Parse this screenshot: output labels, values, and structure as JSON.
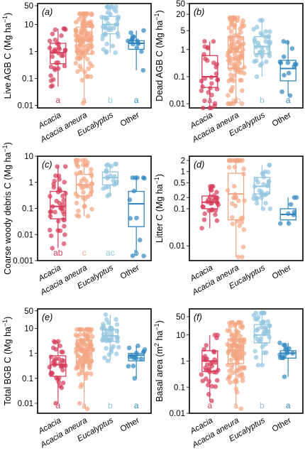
{
  "chart_data": {
    "type": "box-jitter",
    "categories": [
      "Acacia",
      "Acacia aneura",
      "Eucalyptus",
      "Other"
    ],
    "category_italic": [
      true,
      true,
      true,
      false
    ],
    "colors": [
      "#d63a58",
      "#f4a582",
      "#92c5de",
      "#2f86bf"
    ],
    "y_scale": "log",
    "panels": [
      {
        "label": "(a)",
        "ylabel": "Live AGB C (Mg ha",
        "ylabel_sup": "−1",
        "ylabel_end": ")",
        "ylim": [
          0.008,
          60
        ],
        "yticks": [
          0.01,
          0.1,
          1,
          10,
          50
        ],
        "ytick_labels": [
          "0.01",
          "0.1",
          "1",
          "10",
          "50"
        ],
        "letters": [
          "a",
          "a",
          "b",
          "a"
        ],
        "boxes": [
          {
            "q1": 0.35,
            "median": 0.9,
            "q3": 2.0,
            "wlo": 0.05,
            "whi": 7.0
          },
          {
            "q1": 0.8,
            "median": 2.8,
            "q3": 8.0,
            "wlo": 0.012,
            "whi": 25
          },
          {
            "q1": 4.5,
            "median": 10,
            "q3": 20,
            "wlo": 0.9,
            "whi": 45
          },
          {
            "q1": 1.2,
            "median": 2.0,
            "q3": 2.5,
            "wlo": 0.2,
            "whi": 6.0
          }
        ],
        "points_n": [
          35,
          110,
          40,
          15
        ]
      },
      {
        "label": "(b)",
        "ylabel": "Dead AGB C (Mg ha",
        "ylabel_sup": "−1",
        "ylabel_end": ")",
        "ylim": [
          0.007,
          50
        ],
        "yticks": [
          0.01,
          0.1,
          1,
          5,
          20,
          50
        ],
        "ytick_labels": [
          "0.01",
          "0.1",
          "1",
          "5",
          "20",
          "50"
        ],
        "letters": [
          "a",
          "ab",
          "b",
          "a"
        ],
        "boxes": [
          {
            "q1": 0.04,
            "median": 0.1,
            "q3": 0.6,
            "wlo": 0.007,
            "whi": 2.0
          },
          {
            "q1": 0.2,
            "median": 0.8,
            "q3": 3.0,
            "wlo": 0.01,
            "whi": 15
          },
          {
            "q1": 0.7,
            "median": 1.3,
            "q3": 3.0,
            "wlo": 0.1,
            "whi": 12
          },
          {
            "q1": 0.07,
            "median": 0.2,
            "q3": 0.4,
            "wlo": 0.02,
            "whi": 2.0
          }
        ],
        "points_n": [
          30,
          100,
          35,
          14
        ]
      },
      {
        "label": "(c)",
        "ylabel": "Coarse woody debris C (Mg ha",
        "ylabel_sup": "−1",
        "ylabel_end": ")",
        "ylim": [
          0.001,
          10
        ],
        "yticks": [
          0.001,
          0.01,
          0.1,
          1,
          10
        ],
        "ytick_labels": [
          "0.001",
          "0.01",
          "0.1",
          "1",
          "10"
        ],
        "letters": [
          "ab",
          "c",
          "ac",
          "b"
        ],
        "boxes": [
          {
            "q1": 0.04,
            "median": 0.12,
            "q3": 0.45,
            "wlo": 0.003,
            "whi": 4.0
          },
          {
            "q1": 0.3,
            "median": 0.8,
            "q3": 2.0,
            "wlo": 0.05,
            "whi": 7.0
          },
          {
            "q1": 0.8,
            "median": 1.5,
            "q3": 2.5,
            "wlo": 0.3,
            "whi": 5.0
          },
          {
            "q1": 0.02,
            "median": 0.15,
            "q3": 0.45,
            "wlo": 0.0015,
            "whi": 1.5
          }
        ],
        "points_n": [
          40,
          45,
          20,
          12
        ]
      },
      {
        "label": "(d)",
        "ylabel": "Litter C (Mg ha",
        "ylabel_sup": "−1",
        "ylabel_end": ")",
        "ylim": [
          0.004,
          2.6
        ],
        "yticks": [
          0.01,
          0.1,
          0.2,
          0.5,
          1,
          2
        ],
        "ytick_labels": [
          "0.01",
          "0.1",
          "0.2",
          "0.5",
          "1",
          "2"
        ],
        "letters": [
          "",
          "",
          "",
          ""
        ],
        "boxes": [
          {
            "q1": 0.1,
            "median": 0.15,
            "q3": 0.22,
            "wlo": 0.03,
            "whi": 0.4
          },
          {
            "q1": 0.05,
            "median": 0.25,
            "q3": 0.9,
            "wlo": 0.005,
            "whi": 2.0
          },
          {
            "q1": 0.25,
            "median": 0.4,
            "q3": 0.7,
            "wlo": 0.1,
            "whi": 1.5
          },
          {
            "q1": 0.05,
            "median": 0.07,
            "q3": 0.1,
            "wlo": 0.04,
            "whi": 0.2
          }
        ],
        "points_n": [
          30,
          40,
          30,
          8
        ]
      },
      {
        "label": "(e)",
        "ylabel": "Total BGB C (Mg ha",
        "ylabel_sup": "−1",
        "ylabel_end": ")",
        "ylim": [
          0.004,
          60
        ],
        "yticks": [
          0.01,
          0.1,
          1,
          10,
          50
        ],
        "ytick_labels": [
          "0.01",
          "0.1",
          "1",
          "10",
          "50"
        ],
        "letters": [
          "a",
          "a",
          "b",
          "a"
        ],
        "boxes": [
          {
            "q1": 0.12,
            "median": 0.35,
            "q3": 0.8,
            "wlo": 0.01,
            "whi": 3.0
          },
          {
            "q1": 0.45,
            "median": 1.3,
            "q3": 3.5,
            "wlo": 0.006,
            "whi": 9.0
          },
          {
            "q1": 3.0,
            "median": 5.0,
            "q3": 9.0,
            "wlo": 0.5,
            "whi": 35
          },
          {
            "q1": 0.5,
            "median": 0.85,
            "q3": 1.0,
            "wlo": 0.1,
            "whi": 2.0
          }
        ],
        "points_n": [
          35,
          110,
          40,
          15
        ]
      },
      {
        "label": "(f)",
        "ylabel": "Basal area (m",
        "ylabel_sup": "2",
        "ylabel_mid": " ha",
        "ylabel_sup2": "−1",
        "ylabel_end": ")",
        "ylim": [
          0.01,
          100
        ],
        "yticks": [
          0.01,
          0.1,
          1,
          10,
          50
        ],
        "ytick_labels": [
          "0.01",
          "0.1",
          "1",
          "10",
          "50"
        ],
        "letters": [
          "a",
          "a",
          "b",
          "a"
        ],
        "boxes": [
          {
            "q1": 0.4,
            "median": 1.0,
            "q3": 2.5,
            "wlo": 0.03,
            "whi": 10
          },
          {
            "q1": 0.8,
            "median": 2.5,
            "q3": 7.0,
            "wlo": 0.015,
            "whi": 30
          },
          {
            "q1": 5.0,
            "median": 10,
            "q3": 25,
            "wlo": 0.7,
            "whi": 70
          },
          {
            "q1": 1.3,
            "median": 2.0,
            "q3": 2.5,
            "wlo": 0.25,
            "whi": 5.0
          }
        ],
        "points_n": [
          35,
          110,
          40,
          15
        ]
      }
    ]
  }
}
